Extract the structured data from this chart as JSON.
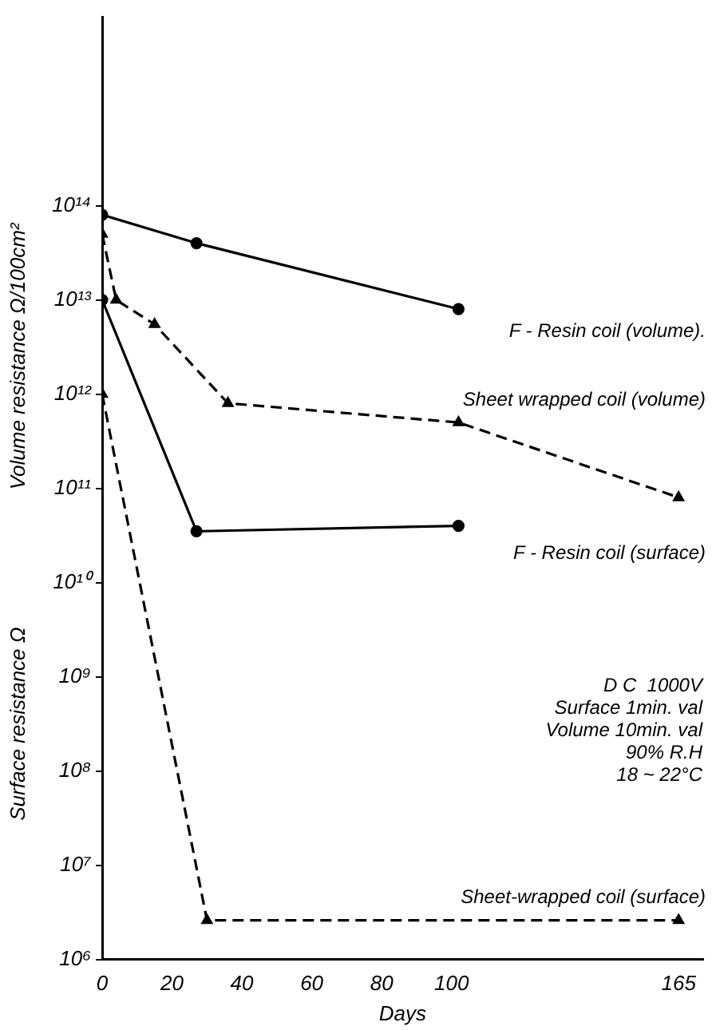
{
  "chart_data": {
    "type": "line",
    "xlabel": "Days",
    "ylabel": "Volume resistance Ω/100cm²",
    "log": "y",
    "xlim": [
      0,
      172
    ],
    "xticks": [
      0,
      20,
      40,
      60,
      80,
      100,
      165
    ],
    "ylim": [
      1000000.0,
      1e+16
    ],
    "yticks": [
      {
        "value": 1000000.0,
        "label": "10⁶"
      },
      {
        "value": 10000000.0,
        "label": "10⁷"
      },
      {
        "value": 100000000.0,
        "label": "10⁸"
      },
      {
        "value": 1000000000.0,
        "label": "10⁹"
      },
      {
        "value": 10000000000.0,
        "label": "10¹⁰"
      },
      {
        "value": 100000000000.0,
        "label": "10¹¹"
      },
      {
        "value": 1000000000000.0,
        "label": "10¹²"
      },
      {
        "value": 10000000000000.0,
        "label": "10¹³"
      },
      {
        "value": 100000000000000.0,
        "label": "10¹⁴"
      }
    ],
    "grid": false,
    "legend": false,
    "series": [
      {
        "name": "F - Resin coil (volume).",
        "color": "#000000",
        "marker": "circle",
        "line_style": "solid",
        "x": [
          0,
          27,
          102
        ],
        "values": [
          80000000000000.0,
          40000000000000.0,
          8000000000000.0
        ]
      },
      {
        "name": "Sheet wrapped coil (volume)",
        "color": "#000000",
        "marker": "triangle",
        "line_style": "dashed",
        "x": [
          0,
          4,
          15,
          36,
          102,
          165
        ],
        "values": [
          50000000000000.0,
          10000000000000.0,
          5500000000000.0,
          800000000000.0,
          500000000000.0,
          80000000000.0
        ]
      },
      {
        "name": "F - Resin coil (surface)",
        "color": "#000000",
        "marker": "circle",
        "line_style": "solid",
        "x": [
          0,
          27,
          102
        ],
        "values": [
          10000000000000.0,
          35000000000.0,
          40000000000.0
        ]
      },
      {
        "name": "Sheet-wrapped coil (surface)",
        "color": "#000000",
        "marker": "triangle",
        "line_style": "dashed",
        "x": [
          0,
          30,
          165
        ],
        "values": [
          1000000000000.0,
          2600000.0,
          2600000.0
        ]
      }
    ],
    "annotations": [
      "Surface resistance Ω",
      "D C  1000V",
      "Surface 1min. val",
      "Volume 10min. val",
      "90% R.H",
      "18 ~ 22°C"
    ]
  }
}
